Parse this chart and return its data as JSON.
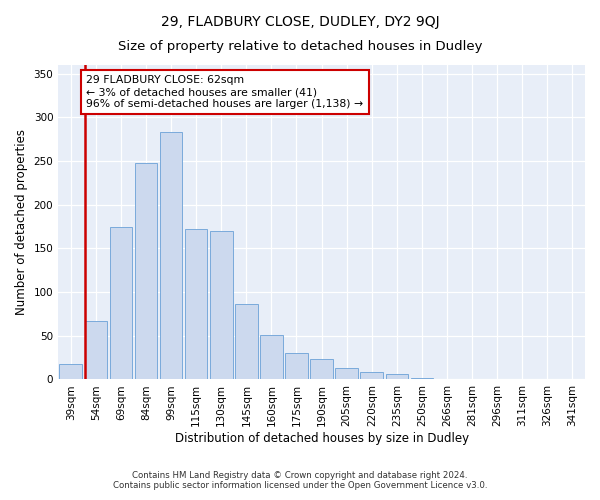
{
  "title_line1": "29, FLADBURY CLOSE, DUDLEY, DY2 9QJ",
  "title_line2": "Size of property relative to detached houses in Dudley",
  "xlabel": "Distribution of detached houses by size in Dudley",
  "ylabel": "Number of detached properties",
  "categories": [
    "39sqm",
    "54sqm",
    "69sqm",
    "84sqm",
    "99sqm",
    "115sqm",
    "130sqm",
    "145sqm",
    "160sqm",
    "175sqm",
    "190sqm",
    "205sqm",
    "220sqm",
    "235sqm",
    "250sqm",
    "266sqm",
    "281sqm",
    "296sqm",
    "311sqm",
    "326sqm",
    "341sqm"
  ],
  "bar_values": [
    18,
    67,
    175,
    248,
    283,
    172,
    170,
    86,
    51,
    30,
    23,
    13,
    8,
    6,
    2,
    1,
    0,
    0,
    0,
    0,
    0
  ],
  "bar_color": "#ccd9ee",
  "bar_edge_color": "#7aaadb",
  "red_line_color": "#cc0000",
  "annotation_line1": "29 FLADBURY CLOSE: 62sqm",
  "annotation_line2": "← 3% of detached houses are smaller (41)",
  "annotation_line3": "96% of semi-detached houses are larger (1,138) →",
  "annotation_box_color": "#ffffff",
  "annotation_box_edge": "#cc0000",
  "ylim": [
    0,
    360
  ],
  "yticks": [
    0,
    50,
    100,
    150,
    200,
    250,
    300,
    350
  ],
  "bg_color": "#e8eef8",
  "footer_line1": "Contains HM Land Registry data © Crown copyright and database right 2024.",
  "footer_line2": "Contains public sector information licensed under the Open Government Licence v3.0.",
  "title_fontsize": 10,
  "subtitle_fontsize": 9.5,
  "tick_fontsize": 7.5,
  "ylabel_fontsize": 8.5,
  "xlabel_fontsize": 8.5
}
